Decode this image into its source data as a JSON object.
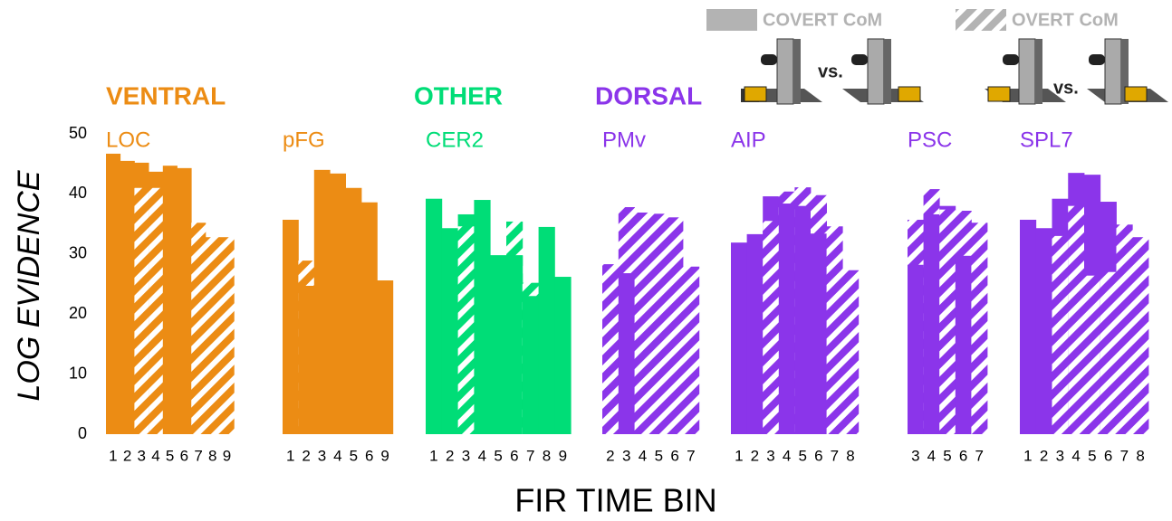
{
  "chart_data": {
    "type": "bar",
    "y_label": "LOG EVIDENCE",
    "x_label": "FIR TIME BIN",
    "ylim": [
      0,
      50
    ],
    "yticks": [
      0,
      10,
      20,
      30,
      40,
      50
    ],
    "series": [
      {
        "name": "COVERT CoM",
        "color": "#b3b3b3",
        "pattern": "solid"
      },
      {
        "name": "OVERT CoM",
        "color": "#b3b3b3",
        "pattern": "hatched"
      }
    ],
    "comparison_label": "vs.",
    "divisions": [
      {
        "name": "VENTRAL",
        "color": "#ec8c14",
        "regions": [
          {
            "name": "LOC",
            "bins": [
              1,
              2,
              3,
              4,
              5,
              6,
              7,
              8,
              9
            ],
            "covert": [
              46.7,
              45.5,
              45.2,
              43.7,
              44.7,
              44.3,
              null,
              null,
              null
            ],
            "overt": [
              null,
              null,
              41,
              41,
              null,
              null,
              35.2,
              32.8,
              32.8
            ]
          },
          {
            "name": "pFG",
            "bins": [
              1,
              2,
              3,
              4,
              5,
              6,
              9
            ],
            "covert": [
              35.7,
              24.7,
              44,
              43.4,
              41,
              38.6,
              25.6
            ],
            "overt": [
              null,
              28.9,
              null,
              null,
              null,
              null,
              null
            ]
          }
        ]
      },
      {
        "name": "OTHER",
        "color": "#00dd77",
        "regions": [
          {
            "name": "CER2",
            "bins": [
              1,
              2,
              3,
              4,
              5,
              6,
              7,
              8,
              9
            ],
            "covert": [
              39.2,
              34.3,
              36.6,
              39,
              29.8,
              29.8,
              23,
              34.5,
              26.2
            ],
            "overt": [
              null,
              null,
              34.6,
              null,
              null,
              35.4,
              25.2,
              null,
              null
            ]
          }
        ]
      },
      {
        "name": "DORSAL",
        "color": "#8b35ea",
        "regions": [
          {
            "name": "PMv",
            "bins": [
              2,
              3,
              4,
              5,
              6,
              7
            ],
            "covert": [
              null,
              26.8,
              null,
              null,
              null,
              null
            ],
            "overt": [
              28.3,
              37.8,
              36.9,
              36.7,
              36.1,
              27.9
            ]
          },
          {
            "name": "AIP",
            "bins": [
              1,
              2,
              3,
              4,
              5,
              6,
              7,
              8
            ],
            "covert": [
              31.9,
              33.3,
              39.6,
              38.4,
              38,
              33.4,
              null,
              null
            ],
            "overt": [
              null,
              null,
              35.5,
              40.4,
              41.1,
              39.8,
              34.6,
              27.3
            ]
          },
          {
            "name": "PSC",
            "bins": [
              3,
              4,
              5,
              6,
              7
            ],
            "covert": [
              28.2,
              36.6,
              38,
              29.7,
              null
            ],
            "overt": [
              35.7,
              40.8,
              37.4,
              37.2,
              35.2
            ]
          },
          {
            "name": "SPL7",
            "bins": [
              1,
              2,
              3,
              4,
              5,
              6,
              7,
              8
            ],
            "covert": [
              35.7,
              34.3,
              39.2,
              43.5,
              43.2,
              38.7,
              null,
              null
            ],
            "overt": [
              null,
              null,
              33,
              38,
              26.4,
              27,
              34.9,
              32.8
            ]
          }
        ]
      }
    ]
  }
}
